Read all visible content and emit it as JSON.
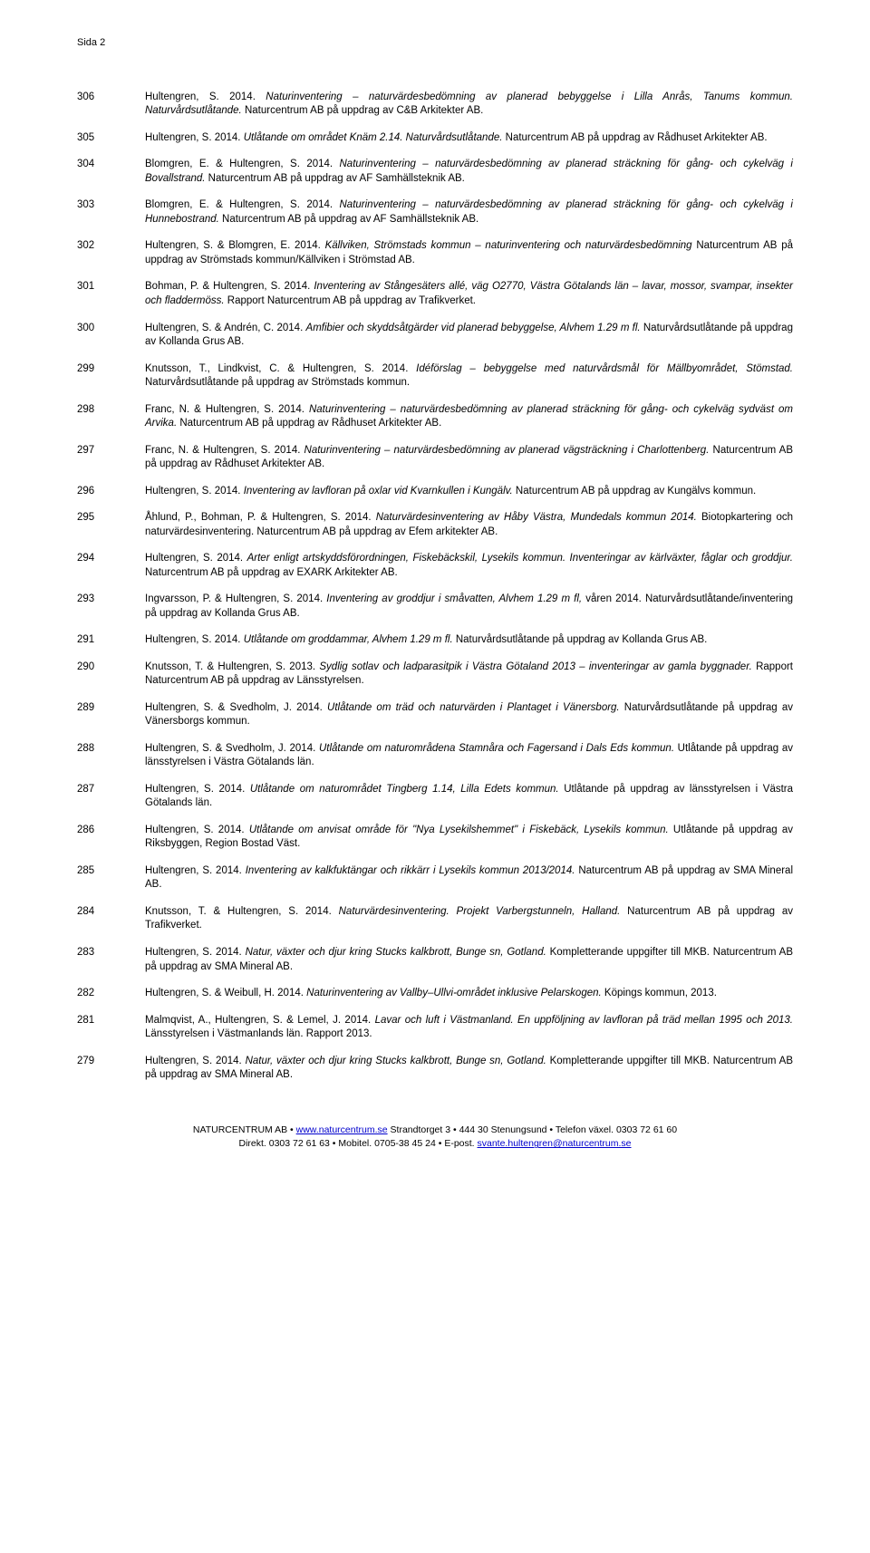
{
  "page_header": "Sida 2",
  "entries": [
    {
      "num": "306",
      "parts": [
        {
          "t": "Hultengren, S. 2014. ",
          "i": false
        },
        {
          "t": "Naturinventering – naturvärdesbedömning av planerad bebyggelse i Lilla Anrås, Tanums kommun. Naturvårdsutlåtande.",
          "i": true
        },
        {
          "t": " Naturcentrum AB på uppdrag av C&B Arkitekter AB.",
          "i": false
        }
      ]
    },
    {
      "num": "305",
      "parts": [
        {
          "t": "Hultengren, S. 2014. ",
          "i": false
        },
        {
          "t": "Utlåtande om området Knäm 2.14. Naturvårdsutlåtande.",
          "i": true
        },
        {
          "t": " Naturcentrum AB på uppdrag av Rådhuset Arkitekter AB.",
          "i": false
        }
      ]
    },
    {
      "num": "304",
      "parts": [
        {
          "t": "Blomgren, E. & Hultengren, S. 2014. ",
          "i": false
        },
        {
          "t": "Naturinventering – naturvärdesbedömning av planerad sträckning för gång- och cykelväg i Bovallstrand.",
          "i": true
        },
        {
          "t": " Naturcentrum AB på uppdrag av AF Samhällsteknik AB.",
          "i": false
        }
      ]
    },
    {
      "num": "303",
      "parts": [
        {
          "t": "Blomgren, E. & Hultengren, S. 2014. ",
          "i": false
        },
        {
          "t": "Naturinventering – naturvärdesbedömning av planerad sträckning för gång- och cykelväg i Hunnebostrand.",
          "i": true
        },
        {
          "t": " Naturcentrum AB på uppdrag av AF Samhällsteknik AB.",
          "i": false
        }
      ]
    },
    {
      "num": "302",
      "parts": [
        {
          "t": "Hultengren, S. & Blomgren, E. 2014. ",
          "i": false
        },
        {
          "t": "Källviken, Strömstads kommun – naturinventering och naturvärdesbedömning",
          "i": true
        },
        {
          "t": " Naturcentrum AB på uppdrag av Strömstads kommun/Källviken i Strömstad AB.",
          "i": false
        }
      ]
    },
    {
      "num": "301",
      "parts": [
        {
          "t": "Bohman, P. & Hultengren, S. 2014. ",
          "i": false
        },
        {
          "t": "Inventering av Stångesäters allé, väg O2770, Västra Götalands län – lavar, mossor, svampar, insekter och fladdermöss.",
          "i": true
        },
        {
          "t": " Rapport Naturcentrum AB på uppdrag av Trafikverket.",
          "i": false
        }
      ]
    },
    {
      "num": "300",
      "parts": [
        {
          "t": "Hultengren, S. & Andrén, C. 2014. ",
          "i": false
        },
        {
          "t": "Amfibier och skyddsåtgärder vid planerad bebyggelse, Alvhem 1.29 m fl.",
          "i": true
        },
        {
          "t": " Naturvårdsutlåtande på uppdrag av Kollanda Grus AB.",
          "i": false
        }
      ]
    },
    {
      "num": "299",
      "parts": [
        {
          "t": "Knutsson, T., Lindkvist, C. & Hultengren, S. 2014. ",
          "i": false
        },
        {
          "t": "Idéförslag – bebyggelse med naturvårdsmål för Mällbyområdet, Stömstad.",
          "i": true
        },
        {
          "t": " Naturvårdsutlåtande på uppdrag av Strömstads kommun.",
          "i": false
        }
      ]
    },
    {
      "num": "298",
      "parts": [
        {
          "t": "Franc, N. & Hultengren, S. 2014. ",
          "i": false
        },
        {
          "t": "Naturinventering – naturvärdesbedömning av planerad sträckning för gång- och cykelväg sydväst om Arvika.",
          "i": true
        },
        {
          "t": " Naturcentrum AB på uppdrag av Rådhuset Arkitekter AB.",
          "i": false
        }
      ]
    },
    {
      "num": "297",
      "parts": [
        {
          "t": "Franc, N. & Hultengren, S. 2014. ",
          "i": false
        },
        {
          "t": "Naturinventering – naturvärdesbedömning av planerad vägsträckning i Charlottenberg.",
          "i": true
        },
        {
          "t": " Naturcentrum AB på uppdrag av Rådhuset Arkitekter AB.",
          "i": false
        }
      ]
    },
    {
      "num": "296",
      "parts": [
        {
          "t": "Hultengren, S. 2014. ",
          "i": false
        },
        {
          "t": "Inventering av lavfloran på oxlar vid Kvarnkullen i Kungälv.",
          "i": true
        },
        {
          "t": " Naturcentrum AB på uppdrag av Kungälvs kommun.",
          "i": false
        }
      ]
    },
    {
      "num": "295",
      "parts": [
        {
          "t": "Åhlund, P., Bohman, P. & Hultengren, S. 2014. ",
          "i": false
        },
        {
          "t": "Naturvärdesinventering av Håby Västra, Mundedals kommun 2014. ",
          "i": true
        },
        {
          "t": "Biotopkartering och naturvärdesinventering. Naturcentrum AB på uppdrag av Efem arkitekter AB.",
          "i": false
        }
      ]
    },
    {
      "num": "294",
      "parts": [
        {
          "t": "Hultengren, S. 2014. ",
          "i": false
        },
        {
          "t": "Arter enligt artskyddsförordningen, Fiskebäckskil, Lysekils kommun. Inventeringar av kärlväxter, fåglar och groddjur.",
          "i": true
        },
        {
          "t": " Naturcentrum AB på uppdrag av EXARK Arkitekter AB.",
          "i": false
        }
      ]
    },
    {
      "num": "293",
      "parts": [
        {
          "t": "Ingvarsson, P. & Hultengren, S. 2014. ",
          "i": false
        },
        {
          "t": "Inventering av groddjur i småvatten, Alvhem 1.29 m fl,",
          "i": true
        },
        {
          "t": " våren 2014. Naturvårdsutlåtande/inventering på uppdrag av Kollanda Grus AB.",
          "i": false
        }
      ]
    },
    {
      "num": "291",
      "parts": [
        {
          "t": "Hultengren, S. 2014. ",
          "i": false
        },
        {
          "t": "Utlåtande om groddammar, Alvhem 1.29 m fl.",
          "i": true
        },
        {
          "t": " Naturvårdsutlåtande på uppdrag av Kollanda Grus AB.",
          "i": false
        }
      ]
    },
    {
      "num": "290",
      "parts": [
        {
          "t": "Knutsson, T. & Hultengren, S. 2013. ",
          "i": false
        },
        {
          "t": "Sydlig sotlav och ladparasitpik i Västra Götaland 2013 – inventeringar av gamla byggnader.",
          "i": true
        },
        {
          "t": " Rapport Naturcentrum AB på uppdrag av Länsstyrelsen.",
          "i": false
        }
      ]
    },
    {
      "num": "289",
      "parts": [
        {
          "t": "Hultengren, S. & Svedholm, J. 2014. ",
          "i": false
        },
        {
          "t": "Utlåtande om träd och naturvärden i Plantaget i Vänersborg.",
          "i": true
        },
        {
          "t": " Naturvårdsutlåtande på uppdrag av Vänersborgs kommun.",
          "i": false
        }
      ]
    },
    {
      "num": "288",
      "parts": [
        {
          "t": "Hultengren, S. & Svedholm, J. 2014. ",
          "i": false
        },
        {
          "t": "Utlåtande om naturområdena Stamnåra och Fagersand i Dals Eds kommun.",
          "i": true
        },
        {
          "t": " Utlåtande på uppdrag av länsstyrelsen i Västra Götalands län.",
          "i": false
        }
      ]
    },
    {
      "num": "287",
      "parts": [
        {
          "t": "Hultengren, S. 2014. ",
          "i": false
        },
        {
          "t": "Utlåtande om naturområdet Tingberg 1.14, Lilla Edets kommun.",
          "i": true
        },
        {
          "t": " Utlåtande på uppdrag av länsstyrelsen i Västra Götalands län.",
          "i": false
        }
      ]
    },
    {
      "num": "286",
      "parts": [
        {
          "t": "Hultengren, S. 2014. ",
          "i": false
        },
        {
          "t": "Utlåtande om anvisat område för \"Nya Lysekilshemmet\" i Fiskebäck, Lysekils kommun.",
          "i": true
        },
        {
          "t": " Utlåtande på uppdrag av Riksbyggen, Region Bostad Väst.",
          "i": false
        }
      ]
    },
    {
      "num": "285",
      "parts": [
        {
          "t": "Hultengren, S. 2014. ",
          "i": false
        },
        {
          "t": "Inventering av kalkfuktängar och rikkärr i Lysekils kommun 2013/2014.",
          "i": true
        },
        {
          "t": " Naturcentrum AB på uppdrag av SMA Mineral AB.",
          "i": false
        }
      ]
    },
    {
      "num": "284",
      "parts": [
        {
          "t": "Knutsson, T. & Hultengren, S. 2014. ",
          "i": false
        },
        {
          "t": "Naturvärdesinventering. Projekt Varbergstunneln, Halland.",
          "i": true
        },
        {
          "t": " Naturcentrum AB på uppdrag av Trafikverket.",
          "i": false
        }
      ]
    },
    {
      "num": "283",
      "parts": [
        {
          "t": "Hultengren, S. 2014. ",
          "i": false
        },
        {
          "t": "Natur, växter och djur kring Stucks kalkbrott, Bunge sn, Gotland.",
          "i": true
        },
        {
          "t": " Kompletterande uppgifter till MKB. Naturcentrum AB på uppdrag av SMA Mineral AB.",
          "i": false
        }
      ]
    },
    {
      "num": "282",
      "parts": [
        {
          "t": "Hultengren, S. & Weibull, H. 2014. ",
          "i": false
        },
        {
          "t": "Naturinventering av Vallby–Ullvi-området inklusive Pelarskogen.",
          "i": true
        },
        {
          "t": " Köpings kommun, 2013.",
          "i": false
        }
      ]
    },
    {
      "num": "281",
      "parts": [
        {
          "t": "Malmqvist, A., Hultengren, S. & Lemel, J. 2014. ",
          "i": false
        },
        {
          "t": "Lavar och luft i Västmanland. En uppföljning av lavfloran på träd mellan 1995 och 2013.",
          "i": true
        },
        {
          "t": " Länsstyrelsen i Västmanlands län. Rapport 2013.",
          "i": false
        }
      ]
    },
    {
      "num": "279",
      "parts": [
        {
          "t": "Hultengren, S. 2014. ",
          "i": false
        },
        {
          "t": "Natur, växter och djur kring Stucks kalkbrott, Bunge sn, Gotland.",
          "i": true
        },
        {
          "t": " Kompletterande uppgifter till MKB. Naturcentrum AB på uppdrag av SMA Mineral AB.",
          "i": false
        }
      ]
    }
  ],
  "footer": {
    "line1_pre": "NATURCENTRUM AB  •  ",
    "line1_link": "www.naturcentrum.se",
    "line1_post": "  Strandtorget 3  •  444 30 Stenungsund  •  Telefon växel. 0303 72 61 60",
    "line2_pre": "Direkt. 0303 72 61 63  •  Mobitel. 0705-38 45 24  •  E-post. ",
    "line2_link": "svante.hultengren@naturcentrum.se"
  }
}
